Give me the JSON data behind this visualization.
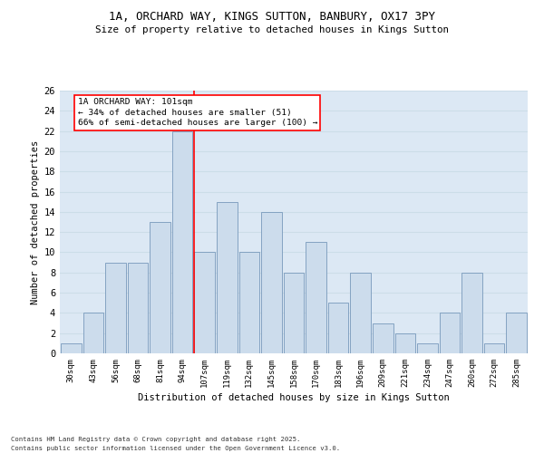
{
  "title1": "1A, ORCHARD WAY, KINGS SUTTON, BANBURY, OX17 3PY",
  "title2": "Size of property relative to detached houses in Kings Sutton",
  "xlabel": "Distribution of detached houses by size in Kings Sutton",
  "ylabel": "Number of detached properties",
  "bar_labels": [
    "30sqm",
    "43sqm",
    "56sqm",
    "68sqm",
    "81sqm",
    "94sqm",
    "107sqm",
    "119sqm",
    "132sqm",
    "145sqm",
    "158sqm",
    "170sqm",
    "183sqm",
    "196sqm",
    "209sqm",
    "221sqm",
    "234sqm",
    "247sqm",
    "260sqm",
    "272sqm",
    "285sqm"
  ],
  "bar_values": [
    1,
    4,
    9,
    9,
    13,
    22,
    10,
    15,
    10,
    14,
    8,
    11,
    5,
    8,
    3,
    2,
    1,
    4,
    8,
    1,
    4
  ],
  "bar_color": "#ccdcec",
  "bar_edge_color": "#7799bb",
  "grid_color": "#ccdde8",
  "background_color": "#dce8f4",
  "annotation_text": "1A ORCHARD WAY: 101sqm\n← 34% of detached houses are smaller (51)\n66% of semi-detached houses are larger (100) →",
  "annotation_box_color": "white",
  "annotation_box_edge_color": "red",
  "line_color": "red",
  "ylim": [
    0,
    26
  ],
  "yticks": [
    0,
    2,
    4,
    6,
    8,
    10,
    12,
    14,
    16,
    18,
    20,
    22,
    24,
    26
  ],
  "footer1": "Contains HM Land Registry data © Crown copyright and database right 2025.",
  "footer2": "Contains public sector information licensed under the Open Government Licence v3.0."
}
